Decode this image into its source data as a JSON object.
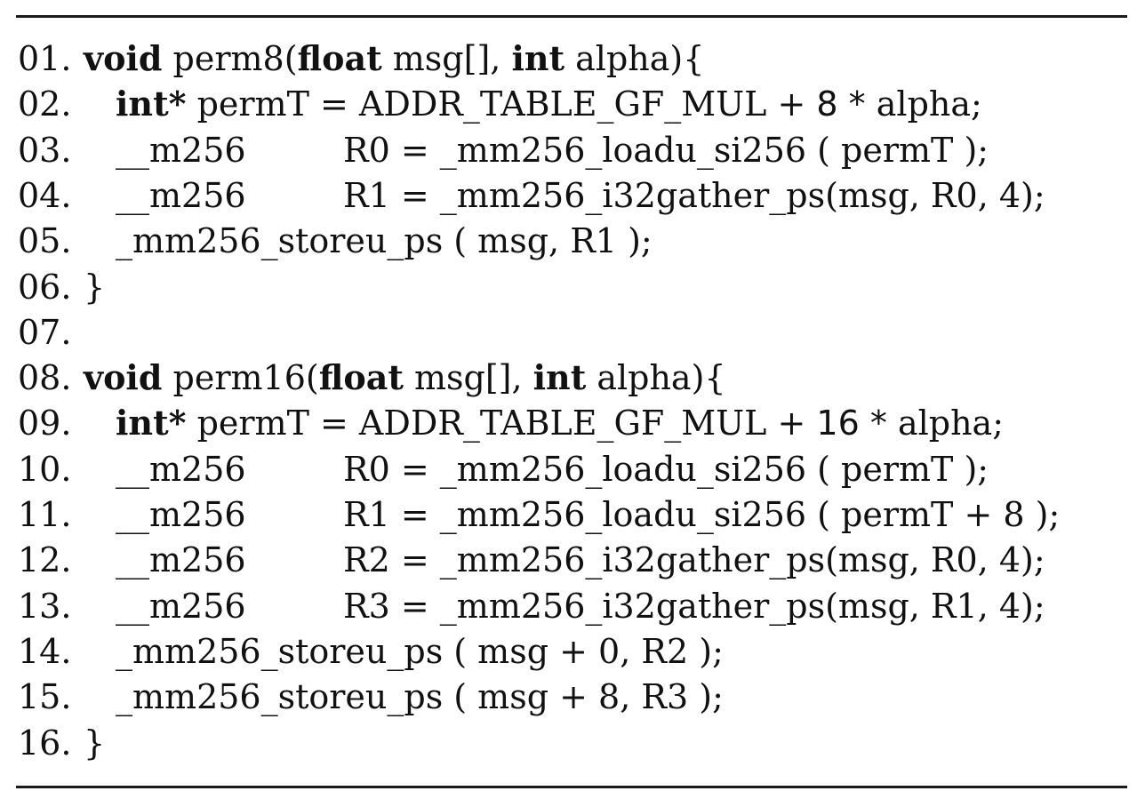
{
  "listing": {
    "lines": [
      {
        "number": "01.",
        "parts": [
          {
            "text": "void",
            "style": "kw"
          },
          {
            "text": " perm8(",
            "style": "normal"
          },
          {
            "text": "float",
            "style": "kw"
          },
          {
            "text": " msg[], ",
            "style": "normal"
          },
          {
            "text": "int",
            "style": "kw"
          },
          {
            "text": " alpha){",
            "style": "normal"
          }
        ]
      },
      {
        "number": "02.",
        "parts": [
          {
            "text": "int*",
            "style": "kw"
          },
          {
            "text": " permT = ADDR_TABLE_GF_MUL + ",
            "style": "normal"
          },
          {
            "text": "8 *",
            "style": "num"
          },
          {
            "text": " alpha;",
            "style": "normal"
          }
        ]
      },
      {
        "number": "03.",
        "left": "__m256",
        "right": "R0 = _mm256_loadu_si256 ( permT );"
      },
      {
        "number": "04.",
        "left": "__m256",
        "right": "R1 = _mm256_i32gather_ps(msg, R0, 4);"
      },
      {
        "number": "05.",
        "parts": [
          {
            "text": "_mm256_storeu_ps ( msg, R1 );",
            "style": "normal"
          }
        ]
      },
      {
        "number": "06.",
        "brace": "}"
      },
      {
        "number": "07."
      },
      {
        "number": "08.",
        "parts": [
          {
            "text": "void",
            "style": "kw"
          },
          {
            "text": " perm16(",
            "style": "normal"
          },
          {
            "text": "float",
            "style": "kw"
          },
          {
            "text": " msg[], ",
            "style": "normal"
          },
          {
            "text": "int",
            "style": "kw"
          },
          {
            "text": " alpha){",
            "style": "normal"
          }
        ]
      },
      {
        "number": "09.",
        "parts": [
          {
            "text": "int*",
            "style": "kw"
          },
          {
            "text": " permT = ADDR_TABLE_GF_MUL + ",
            "style": "normal"
          },
          {
            "text": "16 *",
            "style": "num"
          },
          {
            "text": " alpha;",
            "style": "normal"
          }
        ]
      },
      {
        "number": "10.",
        "left": "__m256",
        "right": "R0 = _mm256_loadu_si256 ( permT );"
      },
      {
        "number": "11.",
        "left": "__m256",
        "right": "R1 = _mm256_loadu_si256 ( permT + 8 );"
      },
      {
        "number": "12.",
        "left": "__m256",
        "right": "R2 = _mm256_i32gather_ps(msg, R0, 4);"
      },
      {
        "number": "13.",
        "left": "__m256",
        "right": "R3 = _mm256_i32gather_ps(msg, R1, 4);"
      },
      {
        "number": "14.",
        "parts": [
          {
            "text": "_mm256_storeu_ps ( msg + 0, R2 );",
            "style": "normal"
          }
        ]
      },
      {
        "number": "15.",
        "parts": [
          {
            "text": "_mm256_storeu_ps ( msg + 8, R3 );",
            "style": "normal"
          }
        ]
      },
      {
        "number": "16.",
        "brace": "}"
      }
    ]
  }
}
